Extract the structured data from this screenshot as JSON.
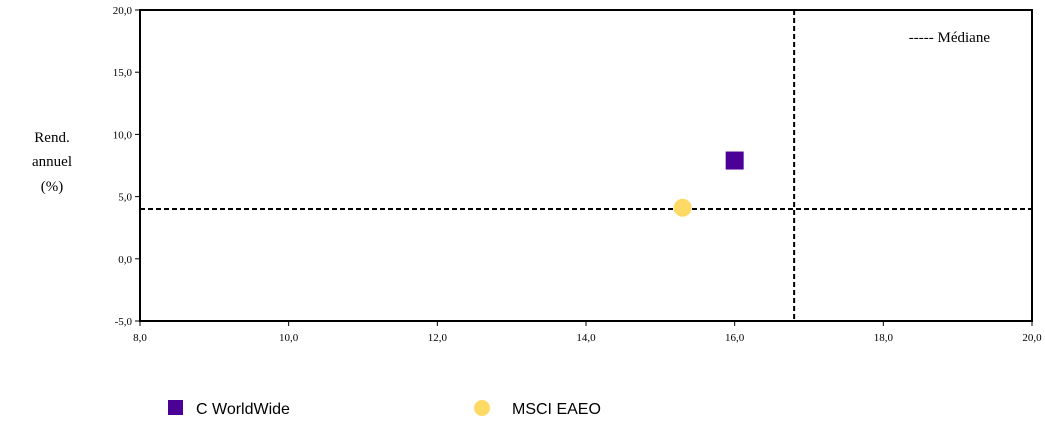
{
  "chart_data": {
    "type": "scatter",
    "ylabel_lines": [
      "Rend.",
      "annuel",
      "(%)"
    ],
    "xlim": [
      8,
      20
    ],
    "ylim": [
      -5,
      20
    ],
    "x_ticks": [
      8,
      10,
      12,
      14,
      16,
      18,
      20
    ],
    "y_ticks": [
      -5,
      0,
      5,
      10,
      15,
      20
    ],
    "x_tick_labels": [
      "8,0",
      "10,0",
      "12,0",
      "14,0",
      "16,0",
      "18,0",
      "20,0"
    ],
    "y_tick_labels": [
      "-5,0",
      "0,0",
      "5,0",
      "10,0",
      "15,0",
      "20,0"
    ],
    "median_label": "----- Médiane",
    "median": {
      "x": 16.8,
      "y": 4.0
    },
    "series": [
      {
        "name": "C WorldWide",
        "x": 16.0,
        "y": 7.9,
        "marker": "square",
        "color": "#4B0096"
      },
      {
        "name": "MSCI EAEO",
        "x": 15.3,
        "y": 4.1,
        "marker": "circle",
        "color": "#FFD966"
      }
    ],
    "grid": false,
    "legend_position": "bottom"
  }
}
